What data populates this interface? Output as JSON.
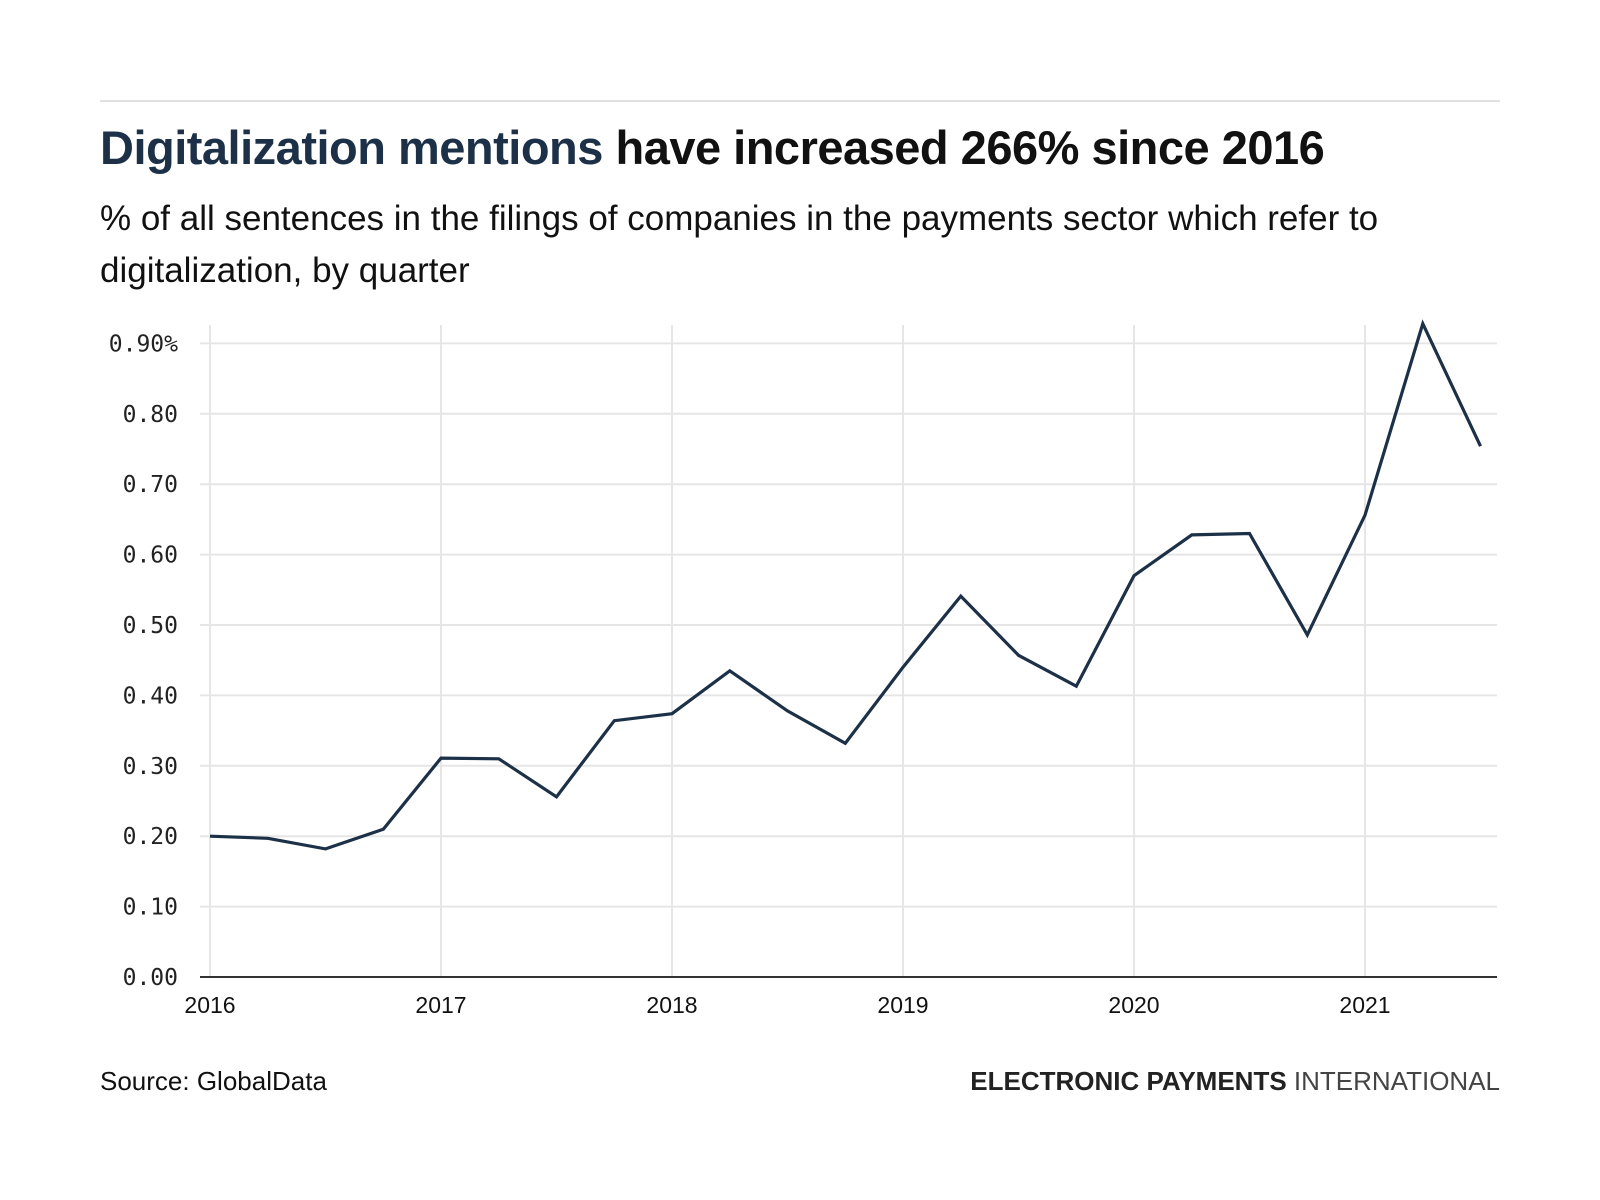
{
  "header": {
    "title_accent": "Digitalization mentions",
    "title_rest": " have increased 266% since 2016",
    "subtitle": "% of all sentences in the filings of companies in the payments sector which refer to digitalization, by quarter"
  },
  "footer": {
    "source": "Source: GlobalData",
    "brand_bold": "ELECTRONIC PAYMENTS",
    "brand_light": " INTERNATIONAL"
  },
  "colors": {
    "line": "#1c3048",
    "grid": "#e6e6e6",
    "axis": "#333333",
    "accent": "#1c3048"
  },
  "chart_data": {
    "type": "line",
    "title": "Digitalization mentions have increased 266% since 2016",
    "subtitle": "% of all sentences in the filings of companies in the payments sector which refer to digitalization, by quarter",
    "xlabel": "",
    "ylabel": "",
    "ylim": [
      0,
      0.9
    ],
    "xlim": [
      2016,
      2021.5
    ],
    "grid": true,
    "yticks": [
      0,
      0.1,
      0.2,
      0.3,
      0.4,
      0.5,
      0.6,
      0.7,
      0.8,
      0.9
    ],
    "ytick_labels": [
      "0.00",
      "0.10",
      "0.20",
      "0.30",
      "0.40",
      "0.50",
      "0.60",
      "0.70",
      "0.80",
      "0.90%"
    ],
    "xticks": [
      2016,
      2017,
      2018,
      2019,
      2020,
      2021
    ],
    "xtick_labels": [
      "2016",
      "2017",
      "2018",
      "2019",
      "2020",
      "2021"
    ],
    "series": [
      {
        "name": "Digitalization mentions",
        "x": [
          "2016 Q1",
          "2016 Q2",
          "2016 Q3",
          "2016 Q4",
          "2017 Q1",
          "2017 Q2",
          "2017 Q3",
          "2017 Q4",
          "2018 Q1",
          "2018 Q2",
          "2018 Q3",
          "2018 Q4",
          "2019 Q1",
          "2019 Q2",
          "2019 Q3",
          "2019 Q4",
          "2020 Q1",
          "2020 Q2",
          "2020 Q3",
          "2020 Q4",
          "2021 Q1",
          "2021 Q2",
          "2021 Q3"
        ],
        "values": [
          0.2,
          0.197,
          0.182,
          0.21,
          0.311,
          0.31,
          0.256,
          0.364,
          0.374,
          0.435,
          0.378,
          0.332,
          0.44,
          0.541,
          0.457,
          0.413,
          0.57,
          0.628,
          0.63,
          0.486,
          0.656,
          0.928,
          0.754
        ]
      }
    ]
  }
}
